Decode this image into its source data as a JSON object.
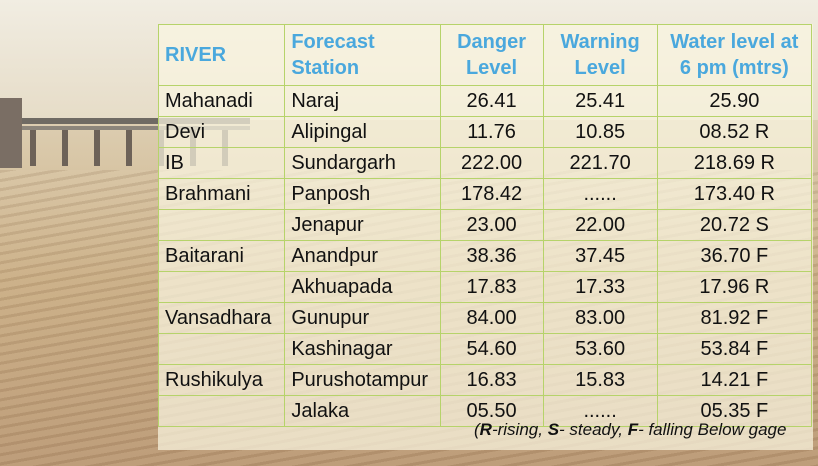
{
  "header": {
    "river": "RIVER",
    "station_line1": "Forecast",
    "station_line2": "Station",
    "danger_line1": "Danger",
    "danger_line2": "Level",
    "warning_line1": "Warning",
    "warning_line2": "Level",
    "water_line1": "Water level at",
    "water_line2": "6 pm (mtrs)"
  },
  "rows": [
    {
      "river": "Mahanadi",
      "station": "Naraj",
      "danger": "26.41",
      "warning": "25.41",
      "water": "25.90"
    },
    {
      "river": "Devi",
      "station": "Alipingal",
      "danger": "11.76",
      "warning": "10.85",
      "water": "08.52 R"
    },
    {
      "river": "IB",
      "station": "Sundargarh",
      "danger": "222.00",
      "warning": "221.70",
      "water": "218.69 R"
    },
    {
      "river": "Brahmani",
      "station": "Panposh",
      "danger": "178.42",
      "warning": "......",
      "water": "173.40 R"
    },
    {
      "river": "",
      "station": "Jenapur",
      "danger": "23.00",
      "warning": "22.00",
      "water": "20.72 S"
    },
    {
      "river": "Baitarani",
      "station": "Anandpur",
      "danger": "38.36",
      "warning": "37.45",
      "water": "36.70 F"
    },
    {
      "river": "",
      "station": "Akhuapada",
      "danger": "17.83",
      "warning": "17.33",
      "water": "17.96 R"
    },
    {
      "river": "Vansadhara",
      "station": "Gunupur",
      "danger": "84.00",
      "warning": "83.00",
      "water": "81.92 F"
    },
    {
      "river": "",
      "station": "Kashinagar",
      "danger": "54.60",
      "warning": "53.60",
      "water": "53.84 F"
    },
    {
      "river": "Rushikulya",
      "station": "Purushotampur",
      "danger": "16.83",
      "warning": "15.83",
      "water": "14.21 F"
    },
    {
      "river": "",
      "station": "Jalaka",
      "danger": "05.50",
      "warning": "......",
      "water": "05.35 F"
    }
  ],
  "legend": {
    "open": "(",
    "r_key": "R",
    "r_text": "-rising, ",
    "s_key": "S",
    "s_text": "- steady, ",
    "f_key": "F",
    "f_text": "- falling Below gage"
  },
  "colors": {
    "header_text": "#4aa8dd",
    "grid_lines": "#b6d36a"
  }
}
